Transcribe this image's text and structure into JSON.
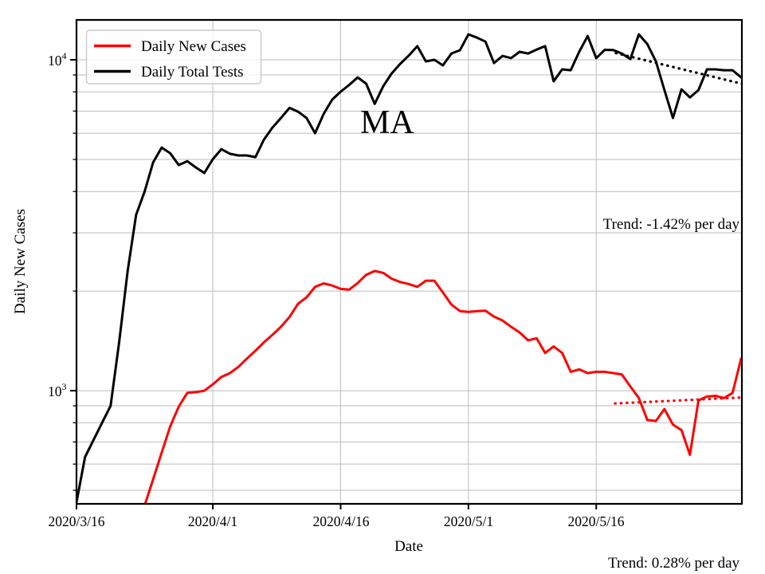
{
  "annotations": {
    "state_label": "MA",
    "trend_tests": "Trend: -1.42% per day",
    "trend_cases": "Trend: 0.28% per day"
  },
  "colors": {
    "cases": "#ff0000",
    "tests": "#000000",
    "grid": "#bdbdbd",
    "axes": "#000000"
  },
  "chart_data": {
    "type": "line",
    "xlabel": "Date",
    "ylabel": "Daily New Cases",
    "yscale": "log",
    "ylim": [
      455,
      13200
    ],
    "grid": "both",
    "legend_position": "upper left",
    "x_tick_labels": [
      "2020/3/16",
      "2020/4/1",
      "2020/4/16",
      "2020/5/1",
      "2020/5/16"
    ],
    "x_tick_days": [
      0,
      16,
      31,
      46,
      61
    ],
    "x_grid_days": [
      16,
      31,
      46,
      61
    ],
    "y_major_ticks": [
      {
        "base": "10",
        "exp": "4",
        "value": 10000
      },
      {
        "base": "10",
        "exp": "3",
        "value": 1000
      }
    ],
    "y_minor_tick_values": [
      500,
      600,
      700,
      800,
      900,
      2000,
      3000,
      4000,
      5000,
      6000,
      7000,
      8000,
      9000
    ],
    "y_grid_values": [
      500,
      600,
      700,
      800,
      900,
      1000,
      2000,
      3000,
      4000,
      5000,
      6000,
      7000,
      8000,
      9000,
      10000
    ],
    "dates": [
      "2020/3/16",
      "2020/3/17",
      "2020/3/18",
      "2020/3/19",
      "2020/3/20",
      "2020/3/21",
      "2020/3/22",
      "2020/3/23",
      "2020/3/24",
      "2020/3/25",
      "2020/3/26",
      "2020/3/27",
      "2020/3/28",
      "2020/3/29",
      "2020/3/30",
      "2020/3/31",
      "2020/4/1",
      "2020/4/2",
      "2020/4/3",
      "2020/4/4",
      "2020/4/5",
      "2020/4/6",
      "2020/4/7",
      "2020/4/8",
      "2020/4/9",
      "2020/4/10",
      "2020/4/11",
      "2020/4/12",
      "2020/4/13",
      "2020/4/14",
      "2020/4/15",
      "2020/4/16",
      "2020/4/17",
      "2020/4/18",
      "2020/4/19",
      "2020/4/20",
      "2020/4/21",
      "2020/4/22",
      "2020/4/23",
      "2020/4/24",
      "2020/4/25",
      "2020/4/26",
      "2020/4/27",
      "2020/4/28",
      "2020/4/29",
      "2020/4/30",
      "2020/5/1",
      "2020/5/2",
      "2020/5/3",
      "2020/5/4",
      "2020/5/5",
      "2020/5/6",
      "2020/5/7",
      "2020/5/8",
      "2020/5/9",
      "2020/5/10",
      "2020/5/11",
      "2020/5/12",
      "2020/5/13",
      "2020/5/14",
      "2020/5/15",
      "2020/5/16",
      "2020/5/17",
      "2020/5/18",
      "2020/5/19",
      "2020/5/20",
      "2020/5/21",
      "2020/5/22",
      "2020/5/23",
      "2020/5/24",
      "2020/5/25",
      "2020/5/26",
      "2020/5/27",
      "2020/5/28",
      "2020/5/29",
      "2020/5/30",
      "2020/5/31",
      "2020/6/1",
      "2020/6/2"
    ],
    "series": [
      {
        "name": "Daily New Cases",
        "color": "#ff0000",
        "values": [
          null,
          null,
          null,
          null,
          null,
          null,
          null,
          null,
          450,
          540,
          650,
          780,
          895,
          985,
          990,
          1000,
          1045,
          1100,
          1130,
          1180,
          1250,
          1320,
          1400,
          1475,
          1560,
          1670,
          1830,
          1915,
          2060,
          2110,
          2080,
          2030,
          2020,
          2115,
          2240,
          2300,
          2270,
          2180,
          2130,
          2100,
          2060,
          2150,
          2150,
          1980,
          1820,
          1740,
          1730,
          1740,
          1745,
          1675,
          1630,
          1560,
          1500,
          1420,
          1440,
          1300,
          1360,
          1300,
          1140,
          1160,
          1130,
          1140,
          1140,
          1130,
          1120,
          1030,
          950,
          815,
          810,
          880,
          790,
          760,
          640,
          935,
          960,
          965,
          950,
          985,
          1250
        ]
      },
      {
        "name": "Daily Total Tests",
        "color": "#000000",
        "values": [
          460,
          630,
          710,
          800,
          900,
          1400,
          2300,
          3400,
          4000,
          4900,
          5430,
          5220,
          4810,
          4940,
          4730,
          4550,
          5010,
          5370,
          5200,
          5140,
          5140,
          5080,
          5740,
          6240,
          6670,
          7160,
          6970,
          6670,
          6000,
          6860,
          7580,
          8010,
          8400,
          8850,
          8470,
          7360,
          8320,
          9100,
          9730,
          10300,
          11000,
          9890,
          10000,
          9620,
          10450,
          10690,
          11940,
          11670,
          11350,
          9780,
          10280,
          10120,
          10570,
          10450,
          10740,
          11000,
          8610,
          9360,
          9300,
          10570,
          11800,
          10120,
          10720,
          10700,
          10450,
          10050,
          11940,
          11150,
          9890,
          8100,
          6670,
          8140,
          7700,
          8100,
          9360,
          9360,
          9300,
          9300,
          8850
        ]
      }
    ],
    "trend_lines": [
      {
        "name": "tests-trend",
        "color": "#000000",
        "label": "Trend: -1.42% per day",
        "points": [
          {
            "day": 63.3,
            "value": 10480
          },
          {
            "day": 78.4,
            "value": 8430
          }
        ]
      },
      {
        "name": "cases-trend",
        "color": "#ff0000",
        "label": "Trend: 0.28% per day",
        "points": [
          {
            "day": 63.2,
            "value": 915
          },
          {
            "day": 78.4,
            "value": 955
          }
        ]
      }
    ],
    "legend": {
      "items": [
        {
          "label": "Daily New Cases",
          "color": "#ff0000"
        },
        {
          "label": "Daily Total Tests",
          "color": "#000000"
        }
      ]
    }
  }
}
